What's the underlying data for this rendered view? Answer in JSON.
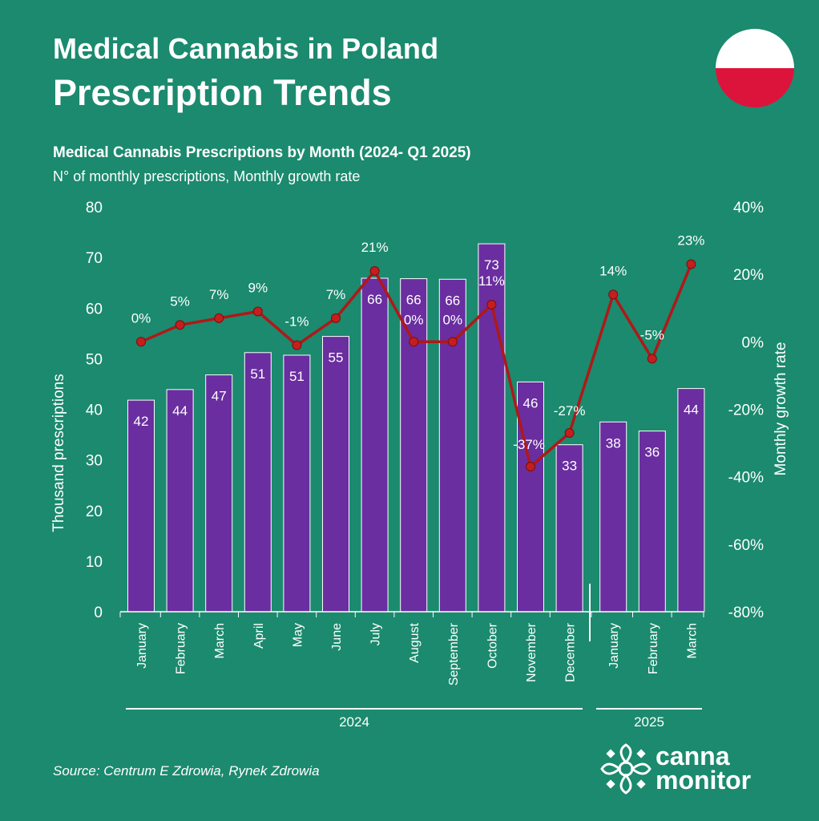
{
  "header": {
    "title_line1": "Medical Cannabis in Poland",
    "title_line2": "Prescription Trends",
    "subtitle": "Medical Cannabis Prescriptions by Month (2024- Q1 2025)",
    "subtitle2": "N° of monthly prescriptions, Monthly growth rate"
  },
  "footer": {
    "source": "Source: Centrum E Zdrowia, Rynek Zdrowia",
    "logo_line1": "canna",
    "logo_line2": "monitor"
  },
  "colors": {
    "background": "#1b8a6e",
    "bar": "#6a2ea0",
    "line": "#b01818",
    "marker": "#c41e1e",
    "flag_white": "#ffffff",
    "flag_red": "#dc143c"
  },
  "chart_data": {
    "type": "bar",
    "categories": [
      "January",
      "February",
      "March",
      "April",
      "May",
      "June",
      "July",
      "August",
      "September",
      "October",
      "November",
      "December",
      "January",
      "February",
      "March"
    ],
    "year_groups": [
      {
        "label": "2024",
        "count": 12
      },
      {
        "label": "2025",
        "count": 3
      }
    ],
    "series": [
      {
        "type": "bar",
        "axis": "left",
        "values": [
          42,
          44,
          47,
          51,
          51,
          55,
          66,
          66,
          66,
          73,
          46,
          33,
          38,
          36,
          44
        ],
        "value_heights": [
          41.8,
          43.9,
          46.8,
          51.2,
          50.7,
          54.4,
          65.9,
          65.8,
          65.7,
          72.7,
          45.4,
          33.0,
          37.5,
          35.7,
          44.1
        ]
      },
      {
        "type": "line",
        "axis": "right",
        "values": [
          0,
          5,
          7,
          9,
          -1,
          7,
          21,
          0,
          0,
          11,
          -37,
          -27,
          14,
          -5,
          23
        ],
        "labels": [
          "0%",
          "5%",
          "7%",
          "9%",
          "-1%",
          "7%",
          "21%",
          "0%",
          "0%",
          "11%",
          "-37%",
          "-27%",
          "14%",
          "-5%",
          "23%"
        ]
      }
    ],
    "ylabel": "Thousand prescriptions",
    "ylabel_right": "Monthly growth rate",
    "ylim": [
      0,
      80
    ],
    "yticks": [
      0,
      10,
      20,
      30,
      40,
      50,
      60,
      70,
      80
    ],
    "ylim_right": [
      -80,
      40
    ],
    "yticks_right": [
      "-80%",
      "-60%",
      "-40%",
      "-20%",
      "0%",
      "20%",
      "40%"
    ],
    "yticks_right_values": [
      -80,
      -60,
      -40,
      -20,
      0,
      20,
      40
    ],
    "grid": false,
    "legend": "none"
  }
}
